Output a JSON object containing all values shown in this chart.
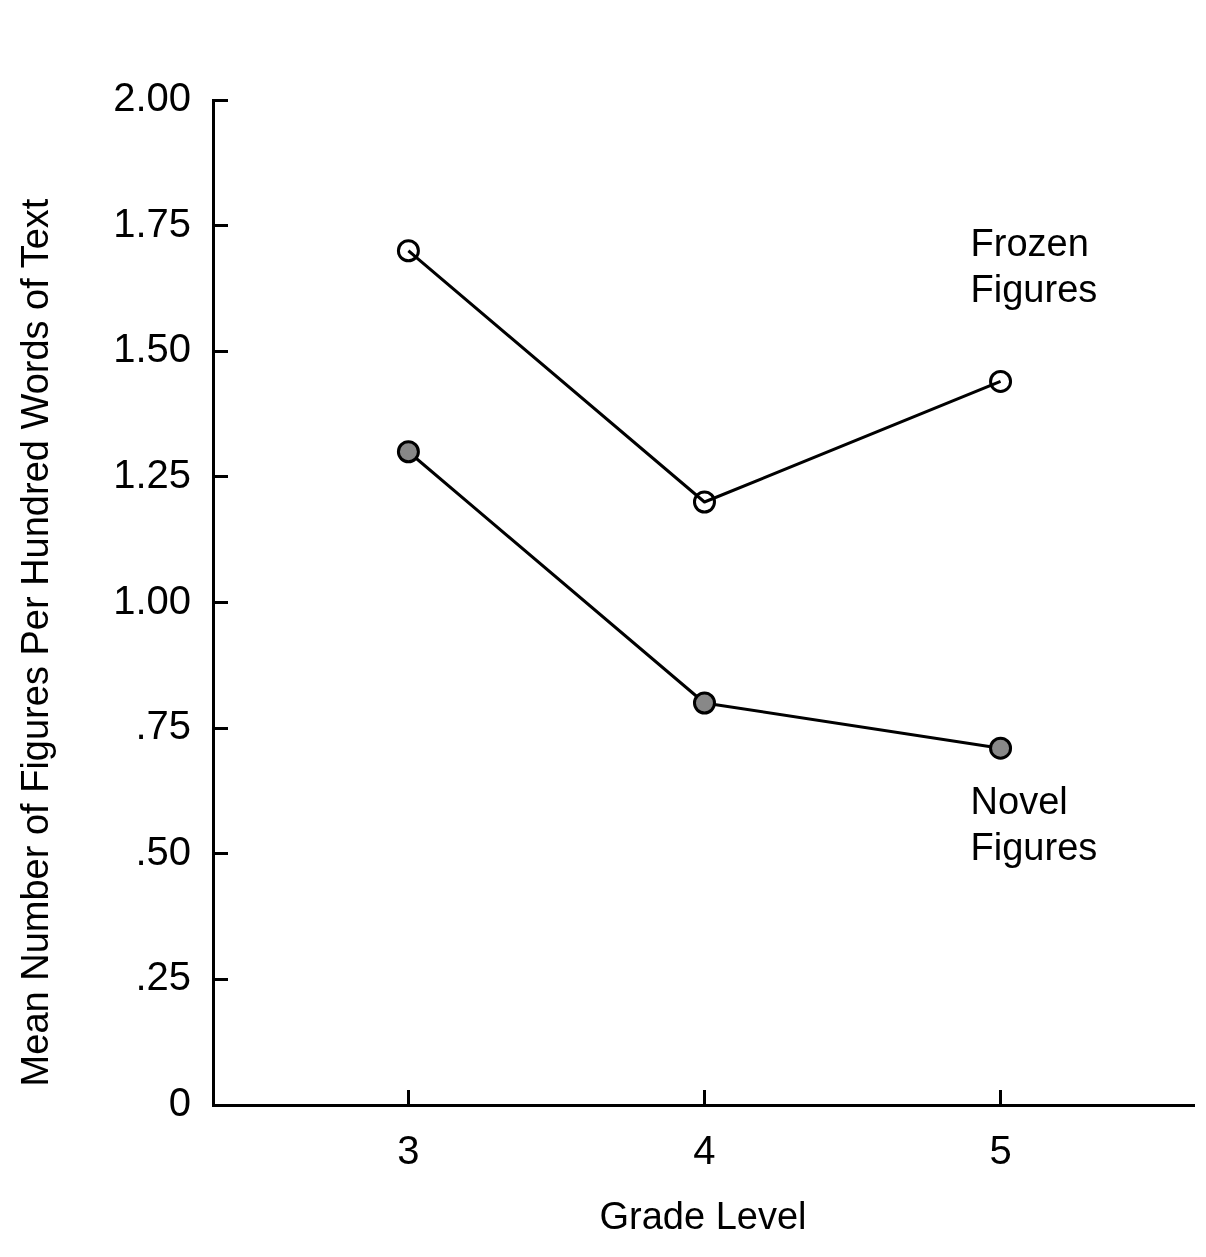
{
  "chart_data": {
    "type": "line",
    "xlabel": "Grade Level",
    "ylabel": "Mean Number of Figures Per Hundred Words of Text",
    "x": [
      3,
      4,
      5
    ],
    "xlim": [
      2.34,
      5.65
    ],
    "xticks": [
      3,
      4,
      5
    ],
    "ylim": [
      0,
      2.0
    ],
    "yticks": [
      {
        "value": 0,
        "label": "0"
      },
      {
        "value": 0.25,
        "label": ".25"
      },
      {
        "value": 0.5,
        "label": ".50"
      },
      {
        "value": 0.75,
        "label": ".75"
      },
      {
        "value": 1.0,
        "label": "1.00"
      },
      {
        "value": 1.25,
        "label": "1.25"
      },
      {
        "value": 1.5,
        "label": "1.50"
      },
      {
        "value": 1.75,
        "label": "1.75"
      },
      {
        "value": 2.0,
        "label": "2.00"
      }
    ],
    "grid": false,
    "legend": false,
    "line_style": "solid",
    "series": [
      {
        "name": "Frozen Figures",
        "color": "#000000",
        "marker": "circle",
        "values": [
          1.7,
          1.2,
          1.44
        ]
      },
      {
        "name": "Novel Figures",
        "color": "#000000",
        "marker": "circle",
        "values": [
          1.3,
          0.8,
          0.71
        ]
      }
    ]
  }
}
